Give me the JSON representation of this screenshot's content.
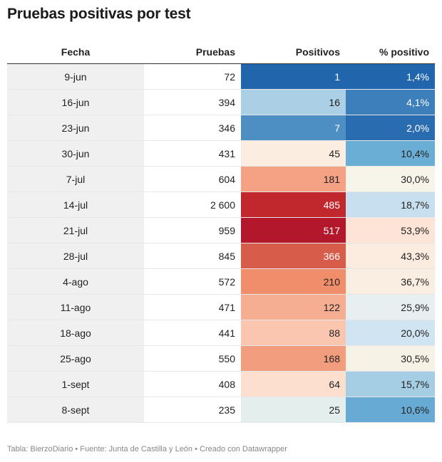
{
  "header": {
    "title": "Pruebas positivas por test"
  },
  "footer": {
    "credits": "Tabla: BierzoDiario • Fuente: Junta de Castilla y León • Creado con Datawrapper"
  },
  "chart_data": {
    "type": "table",
    "title": "Pruebas positivas por test",
    "columns": [
      "Fecha",
      "Pruebas",
      "Positivos",
      "% positivo"
    ],
    "rows": [
      {
        "fecha": "9-jun",
        "pruebas": "72",
        "positivos": "1",
        "pct": "1,4%"
      },
      {
        "fecha": "16-jun",
        "pruebas": "394",
        "positivos": "16",
        "pct": "4,1%"
      },
      {
        "fecha": "23-jun",
        "pruebas": "346",
        "positivos": "7",
        "pct": "2,0%"
      },
      {
        "fecha": "30-jun",
        "pruebas": "431",
        "positivos": "45",
        "pct": "10,4%"
      },
      {
        "fecha": "7-jul",
        "pruebas": "604",
        "positivos": "181",
        "pct": "30,0%"
      },
      {
        "fecha": "14-jul",
        "pruebas": "2 600",
        "positivos": "485",
        "pct": "18,7%"
      },
      {
        "fecha": "21-jul",
        "pruebas": "959",
        "positivos": "517",
        "pct": "53,9%"
      },
      {
        "fecha": "28-jul",
        "pruebas": "845",
        "positivos": "366",
        "pct": "43,3%"
      },
      {
        "fecha": "4-ago",
        "pruebas": "572",
        "positivos": "210",
        "pct": "36,7%"
      },
      {
        "fecha": "11-ago",
        "pruebas": "471",
        "positivos": "122",
        "pct": "25,9%"
      },
      {
        "fecha": "18-ago",
        "pruebas": "441",
        "positivos": "88",
        "pct": "20,0%"
      },
      {
        "fecha": "25-ago",
        "pruebas": "550",
        "positivos": "168",
        "pct": "30,5%"
      },
      {
        "fecha": "1-sept",
        "pruebas": "408",
        "positivos": "64",
        "pct": "15,7%"
      },
      {
        "fecha": "8-sept",
        "pruebas": "235",
        "positivos": "25",
        "pct": "10,6%"
      }
    ],
    "cell_colors": {
      "positivos": [
        "#2166ac",
        "#abd0e6",
        "#4d8fc2",
        "#fbede0",
        "#f4a283",
        "#c0282d",
        "#b2172b",
        "#d85c4a",
        "#f08d6a",
        "#f6ae93",
        "#fac6b0",
        "#f29e7e",
        "#fcdfce",
        "#e4eeec"
      ],
      "pct": [
        "#2166ac",
        "#3d7fbb",
        "#2a6cb0",
        "#6aaed6",
        "#f7f4ea",
        "#c7dfee",
        "#fde4d6",
        "#fcebdf",
        "#faede2",
        "#e8eff0",
        "#d1e4f1",
        "#f6f3e6",
        "#a5cde4",
        "#67abd5"
      ]
    }
  }
}
